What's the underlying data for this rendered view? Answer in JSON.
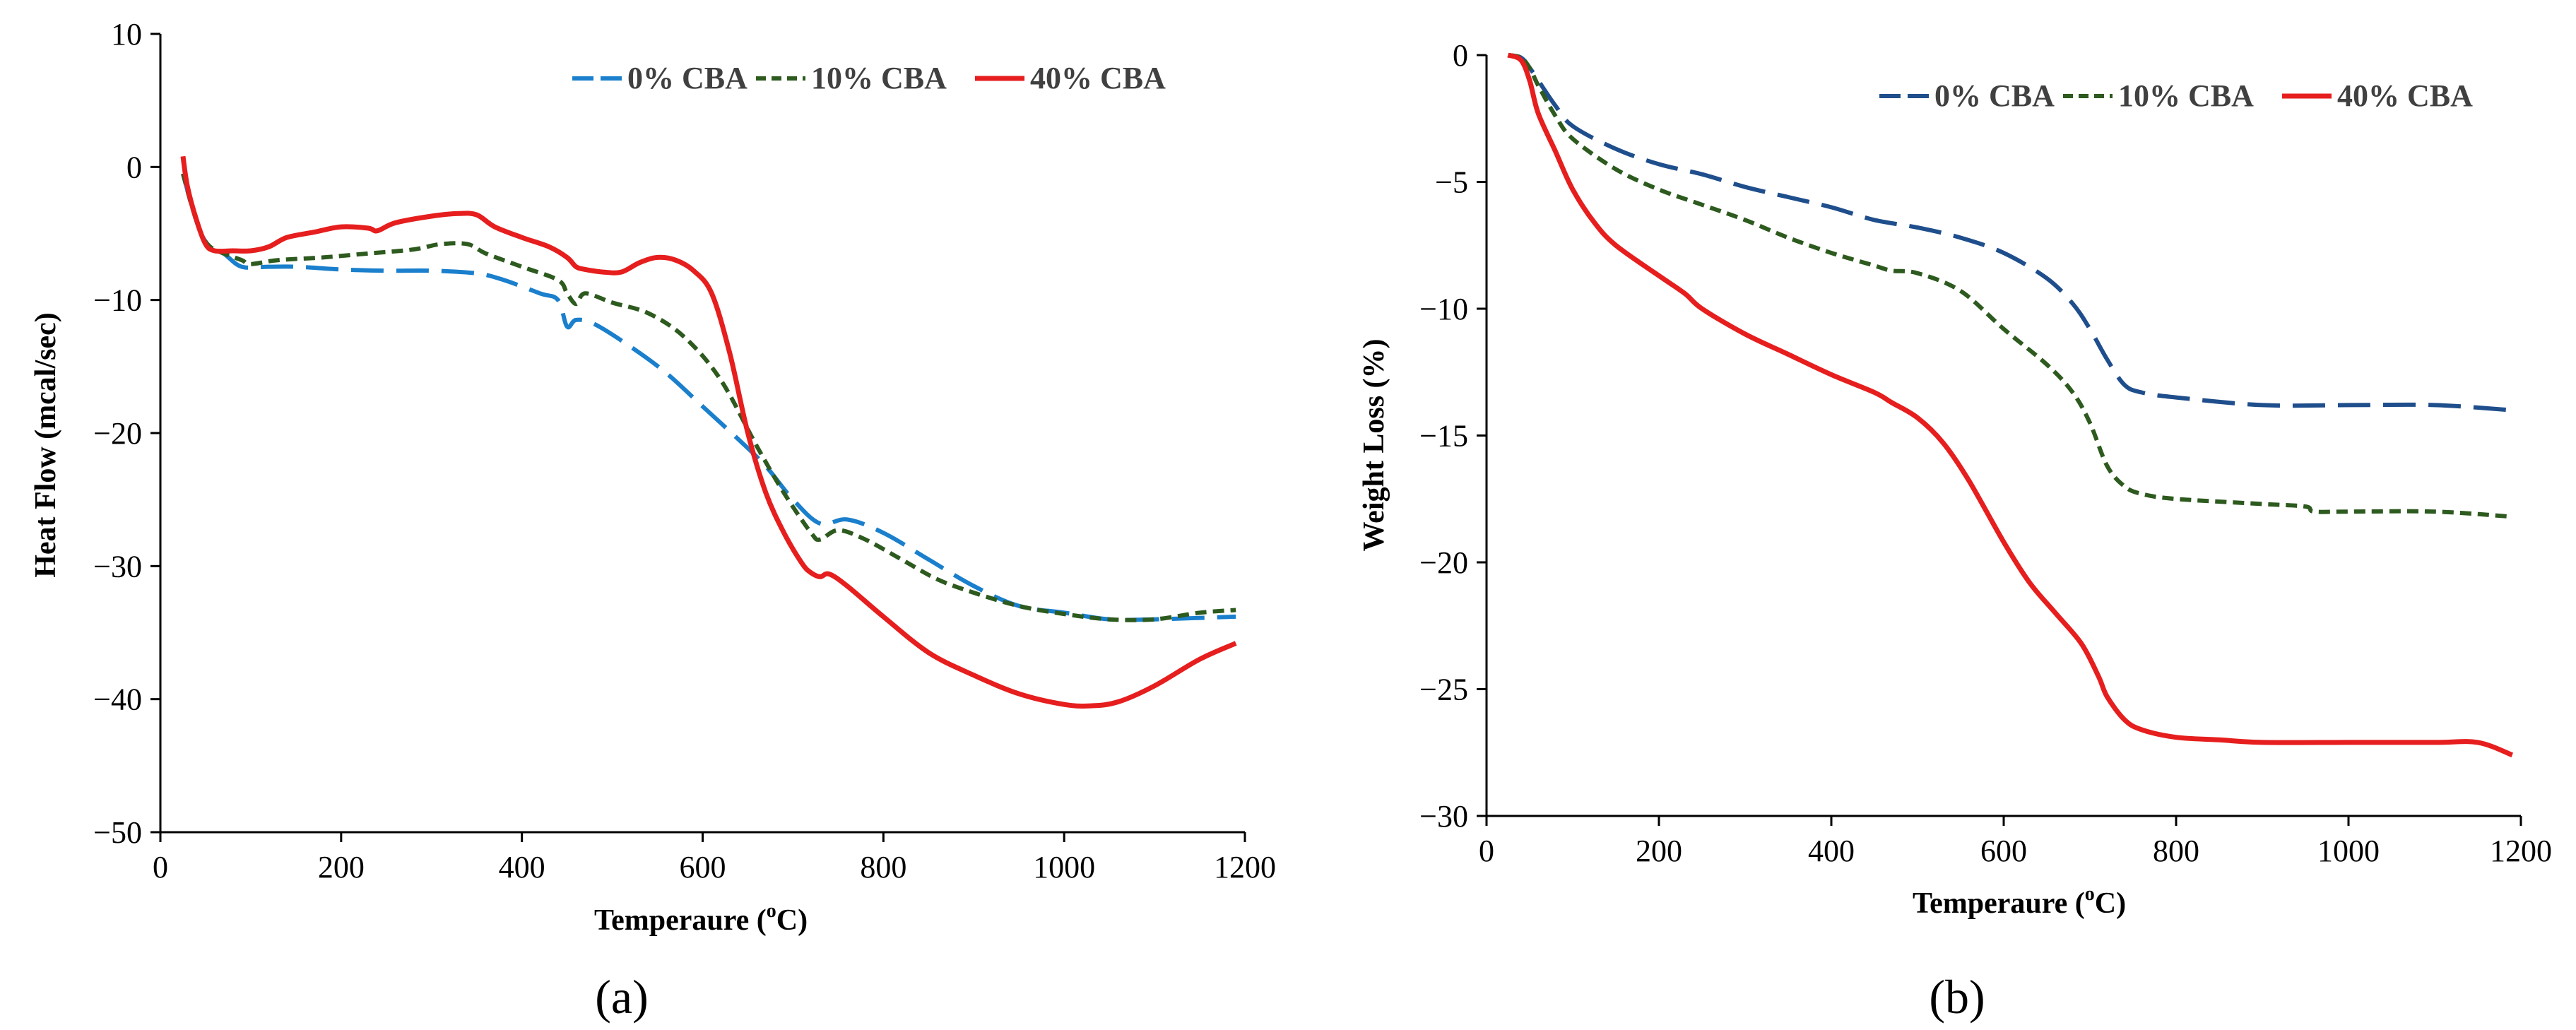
{
  "figure": {
    "panel_labels": [
      "(a)",
      "(b)"
    ]
  },
  "chart_data": [
    {
      "type": "line",
      "panel": "(a)",
      "title": "",
      "xlabel": "Temperaure (",
      "xlabel_sup": "o",
      "xlabel_unit": "C)",
      "ylabel": "Heat Flow (mcal/sec)",
      "xlim": [
        0,
        1200
      ],
      "ylim": [
        -50,
        10
      ],
      "xticks": [
        0,
        200,
        400,
        600,
        800,
        1000,
        1200
      ],
      "yticks": [
        10,
        0,
        -10,
        -20,
        -30,
        -40,
        -50
      ],
      "ytick_labels": [
        "10",
        "0",
        "−10",
        "−20",
        "−30",
        "−40",
        "−50"
      ],
      "grid": false,
      "legend": "top-right",
      "series": [
        {
          "name": "0% CBA",
          "color": "#1a7fcc",
          "dash": "long-dash",
          "x": [
            25,
            35,
            45,
            55,
            70,
            90,
            120,
            150,
            200,
            250,
            300,
            350,
            380,
            420,
            440,
            450,
            460,
            480,
            520,
            560,
            600,
            640,
            670,
            700,
            730,
            760,
            800,
            850,
            900,
            950,
            1000,
            1050,
            1100,
            1190
          ],
          "y": [
            -0.5,
            -3,
            -5,
            -6,
            -6.5,
            -7.5,
            -7.5,
            -7.5,
            -7.7,
            -7.8,
            -7.8,
            -8,
            -8.5,
            -9.5,
            -10,
            -12,
            -11.5,
            -11.8,
            -13.5,
            -15.5,
            -18,
            -20.5,
            -22.5,
            -25,
            -26.8,
            -26.5,
            -27.5,
            -29.5,
            -31.5,
            -33,
            -33.5,
            -34,
            -34,
            -33.8
          ]
        },
        {
          "name": "10% CBA",
          "color": "#2d5a1e",
          "dash": "short-dash",
          "x": [
            25,
            35,
            45,
            55,
            70,
            90,
            100,
            130,
            180,
            230,
            280,
            310,
            340,
            360,
            400,
            440,
            450,
            460,
            470,
            500,
            540,
            580,
            620,
            660,
            690,
            720,
            730,
            750,
            780,
            820,
            860,
            900,
            950,
            1000,
            1050,
            1100,
            1150,
            1190
          ],
          "y": [
            -0.5,
            -3,
            -5,
            -6,
            -6.5,
            -7,
            -7.3,
            -7,
            -6.8,
            -6.5,
            -6.2,
            -5.8,
            -5.8,
            -6.5,
            -7.5,
            -8.5,
            -9.5,
            -10.3,
            -9.5,
            -10.2,
            -11,
            -12.8,
            -16,
            -21,
            -24.5,
            -27.5,
            -28,
            -27.3,
            -28,
            -29.5,
            -31,
            -32,
            -33,
            -33.6,
            -34,
            -34,
            -33.5,
            -33.3
          ]
        },
        {
          "name": "40% CBA",
          "color": "#e61e1e",
          "dash": "solid",
          "x": [
            25,
            30,
            40,
            50,
            60,
            80,
            100,
            120,
            140,
            170,
            200,
            230,
            240,
            260,
            300,
            330,
            350,
            370,
            400,
            430,
            450,
            460,
            470,
            490,
            510,
            530,
            550,
            570,
            590,
            610,
            630,
            650,
            670,
            690,
            710,
            720,
            730,
            740,
            760,
            800,
            850,
            900,
            950,
            1000,
            1030,
            1060,
            1100,
            1150,
            1190
          ],
          "y": [
            0.8,
            -1.5,
            -4,
            -5.8,
            -6.3,
            -6.3,
            -6.3,
            -6,
            -5.3,
            -4.9,
            -4.5,
            -4.6,
            -4.8,
            -4.2,
            -3.7,
            -3.5,
            -3.6,
            -4.5,
            -5.3,
            -6,
            -6.8,
            -7.5,
            -7.7,
            -7.9,
            -7.9,
            -7.2,
            -6.8,
            -7,
            -7.8,
            -9.5,
            -14,
            -20,
            -24.5,
            -27.5,
            -29.8,
            -30.5,
            -30.8,
            -30.6,
            -31.5,
            -33.8,
            -36.5,
            -38.2,
            -39.6,
            -40.4,
            -40.5,
            -40.2,
            -39,
            -37,
            -35.8
          ]
        }
      ]
    },
    {
      "type": "line",
      "panel": "(b)",
      "title": "",
      "xlabel": "Temperaure (",
      "xlabel_sup": "o",
      "xlabel_unit": "C)",
      "ylabel": "Weight Loss (%)",
      "xlim": [
        0,
        1200
      ],
      "ylim": [
        -30,
        0
      ],
      "xticks": [
        0,
        200,
        400,
        600,
        800,
        1000,
        1200
      ],
      "yticks": [
        0,
        -5,
        -10,
        -15,
        -20,
        -25,
        -30
      ],
      "ytick_labels": [
        "0",
        "−5",
        "−10",
        "−15",
        "−20",
        "−25",
        "−30"
      ],
      "grid": false,
      "legend": "top-right",
      "series": [
        {
          "name": "0% CBA",
          "color": "#1f4e8c",
          "dash": "long-dash",
          "x": [
            25,
            40,
            50,
            60,
            80,
            100,
            150,
            200,
            250,
            300,
            350,
            400,
            450,
            500,
            550,
            600,
            650,
            680,
            700,
            720,
            740,
            760,
            800,
            900,
            1000,
            1100,
            1190
          ],
          "y": [
            0,
            -0.1,
            -0.5,
            -1,
            -2,
            -2.8,
            -3.7,
            -4.3,
            -4.7,
            -5.2,
            -5.6,
            -6,
            -6.5,
            -6.8,
            -7.2,
            -7.8,
            -8.8,
            -9.8,
            -10.8,
            -12,
            -13,
            -13.3,
            -13.5,
            -13.8,
            -13.8,
            -13.8,
            -14
          ]
        },
        {
          "name": "10% CBA",
          "color": "#2d5a1e",
          "dash": "short-dash",
          "x": [
            25,
            40,
            50,
            60,
            80,
            100,
            150,
            200,
            250,
            300,
            350,
            400,
            450,
            470,
            500,
            550,
            600,
            650,
            680,
            700,
            720,
            740,
            760,
            800,
            900,
            950,
            960,
            1000,
            1100,
            1190
          ],
          "y": [
            0,
            -0.1,
            -0.5,
            -1.2,
            -2.4,
            -3.3,
            -4.5,
            -5.3,
            -5.9,
            -6.5,
            -7.2,
            -7.8,
            -8.3,
            -8.5,
            -8.6,
            -9.3,
            -10.8,
            -12.2,
            -13.3,
            -14.5,
            -16.2,
            -17,
            -17.3,
            -17.5,
            -17.7,
            -17.8,
            -18,
            -18,
            -18,
            -18.2
          ]
        },
        {
          "name": "40% CBA",
          "color": "#e61e1e",
          "dash": "solid",
          "x": [
            25,
            40,
            50,
            60,
            80,
            100,
            125,
            150,
            200,
            230,
            250,
            300,
            350,
            400,
            450,
            470,
            500,
            530,
            560,
            600,
            630,
            660,
            690,
            710,
            720,
            740,
            760,
            800,
            850,
            900,
            1000,
            1100,
            1150,
            1190
          ],
          "y": [
            0,
            -0.2,
            -1,
            -2.3,
            -3.8,
            -5.3,
            -6.6,
            -7.5,
            -8.7,
            -9.4,
            -10,
            -11,
            -11.8,
            -12.6,
            -13.3,
            -13.7,
            -14.3,
            -15.3,
            -16.8,
            -19.2,
            -20.8,
            -22,
            -23.2,
            -24.5,
            -25.3,
            -26.2,
            -26.6,
            -26.9,
            -27,
            -27.1,
            -27.1,
            -27.1,
            -27.1,
            -27.6
          ]
        }
      ]
    }
  ]
}
